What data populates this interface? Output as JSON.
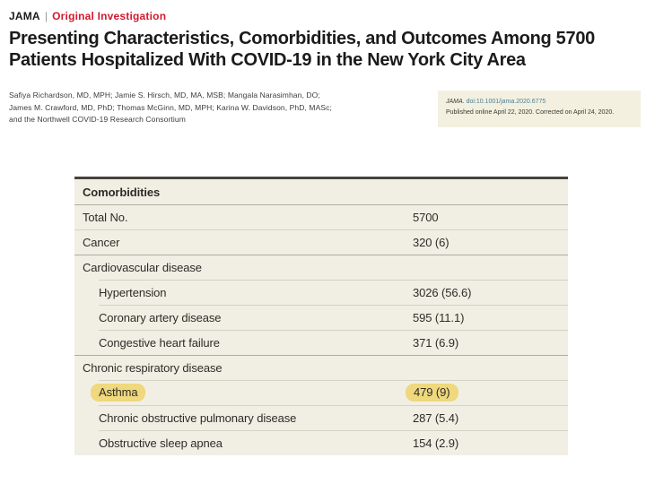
{
  "header": {
    "journal": "JAMA",
    "separator": "|",
    "article_type": "Original Investigation",
    "title_lines": [
      "Presenting Characteristics, Comorbidities, and Outcomes Among 5700",
      "Patients Hospitalized With COVID-19 in the New York City Area"
    ],
    "author_lines": [
      "Safiya Richardson, MD, MPH; Jamie S. Hirsch, MD, MA, MSB; Mangala Narasimhan, DO;",
      "James M. Crawford, MD, PhD; Thomas McGinn, MD, MPH; Karina W. Davidson, PhD, MASc;",
      "and the Northwell COVID-19 Research Consortium"
    ]
  },
  "citation": {
    "journal": "JAMA.",
    "doi": "doi:10.1001/jama.2020.6775",
    "published": "Published online April 22, 2020. Corrected on April 24, 2020."
  },
  "colors": {
    "accent_red": "#d2182e",
    "table_background": "#f1efe4",
    "citation_background": "#f3f0e0",
    "highlight_yellow": "#efd87d",
    "doi_link": "#4a7e96"
  },
  "table": {
    "section_title": "Comorbidities",
    "rows": [
      {
        "label": "Comorbidities",
        "value": ""
      },
      {
        "label": "Total No.",
        "value": "5700"
      },
      {
        "label": "Cancer",
        "value": "320 (6)"
      },
      {
        "label": "Cardiovascular disease",
        "value": ""
      },
      {
        "label": "Hypertension",
        "value": "3026 (56.6)"
      },
      {
        "label": "Coronary artery disease",
        "value": "595 (11.1)"
      },
      {
        "label": "Congestive heart failure",
        "value": "371 (6.9)"
      },
      {
        "label": "Chronic respiratory disease",
        "value": ""
      },
      {
        "label": "Asthma",
        "value": "479 (9)"
      },
      {
        "label": "Chronic obstructive pulmonary disease",
        "value": "287 (5.4)"
      },
      {
        "label": "Obstructive sleep apnea",
        "value": "154 (2.9)"
      }
    ]
  }
}
